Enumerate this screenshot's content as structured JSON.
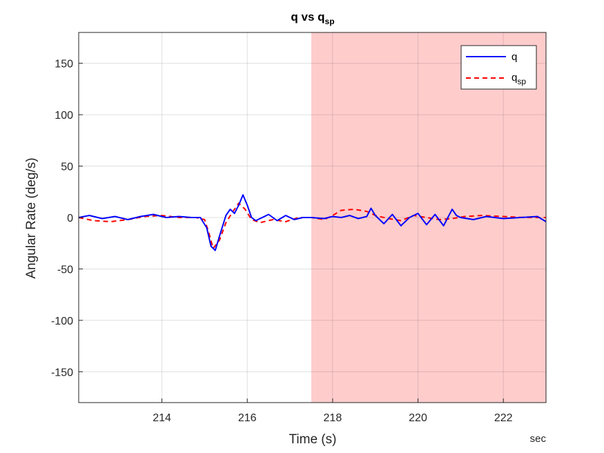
{
  "chart_data": {
    "type": "line",
    "title": {
      "main": "q vs q",
      "subscript": "sp"
    },
    "xlabel": "Time (s)",
    "ylabel": "Angular Rate (deg/s)",
    "x_unit_label": "sec",
    "xlim": [
      212.05,
      223.0
    ],
    "ylim": [
      -180,
      180
    ],
    "x_ticks": [
      214,
      216,
      218,
      220,
      222
    ],
    "y_ticks": [
      150,
      100,
      50,
      0,
      -50,
      -100,
      -150
    ],
    "grid": true,
    "legend_position": "top-right",
    "shaded_region": {
      "x_start": 217.5,
      "x_end": 223.0,
      "color": "#ffcccc"
    },
    "colors": {
      "q": "#0000ff",
      "q_sp": "#ff0000"
    },
    "series": [
      {
        "name": "q",
        "name_subscript": "",
        "style": "solid",
        "x": [
          212.05,
          212.3,
          212.6,
          212.9,
          213.2,
          213.5,
          213.8,
          214.1,
          214.4,
          214.7,
          214.9,
          215.05,
          215.15,
          215.25,
          215.35,
          215.5,
          215.6,
          215.7,
          215.8,
          215.9,
          216.0,
          216.1,
          216.2,
          216.35,
          216.5,
          216.7,
          216.9,
          217.1,
          217.3,
          217.5,
          217.8,
          218.0,
          218.2,
          218.4,
          218.6,
          218.8,
          218.9,
          219.0,
          219.2,
          219.4,
          219.6,
          219.8,
          220.0,
          220.2,
          220.4,
          220.6,
          220.8,
          220.9,
          221.0,
          221.3,
          221.6,
          222.0,
          222.4,
          222.8,
          223.0
        ],
        "y": [
          0,
          2,
          -1,
          1,
          -2,
          1,
          3,
          0,
          1,
          0,
          0,
          -10,
          -28,
          -32,
          -18,
          2,
          8,
          4,
          12,
          22,
          12,
          0,
          -3,
          0,
          3,
          -3,
          2,
          -2,
          0,
          0,
          -1,
          1,
          0,
          2,
          -1,
          1,
          9,
          2,
          -6,
          3,
          -8,
          0,
          4,
          -7,
          3,
          -8,
          8,
          2,
          0,
          -2,
          1,
          -1,
          0,
          1,
          -4
        ]
      },
      {
        "name": "q",
        "name_subscript": "sp",
        "style": "dashed",
        "x": [
          212.05,
          212.4,
          212.8,
          213.2,
          213.6,
          214.0,
          214.4,
          214.8,
          215.0,
          215.1,
          215.2,
          215.35,
          215.5,
          215.65,
          215.8,
          215.95,
          216.1,
          216.3,
          216.6,
          216.9,
          217.2,
          217.5,
          217.8,
          218.0,
          218.2,
          218.5,
          218.8,
          219.0,
          219.3,
          219.6,
          219.9,
          220.2,
          220.5,
          220.8,
          221.1,
          221.5,
          222.0,
          222.5,
          223.0
        ],
        "y": [
          0,
          -3,
          -4,
          -2,
          1,
          2,
          0,
          0,
          -2,
          -15,
          -30,
          -22,
          -5,
          5,
          14,
          8,
          -2,
          -5,
          -2,
          -4,
          0,
          0,
          -2,
          2,
          7,
          8,
          6,
          2,
          -1,
          -3,
          2,
          0,
          -2,
          -1,
          1,
          2,
          1,
          0,
          0
        ]
      }
    ]
  }
}
